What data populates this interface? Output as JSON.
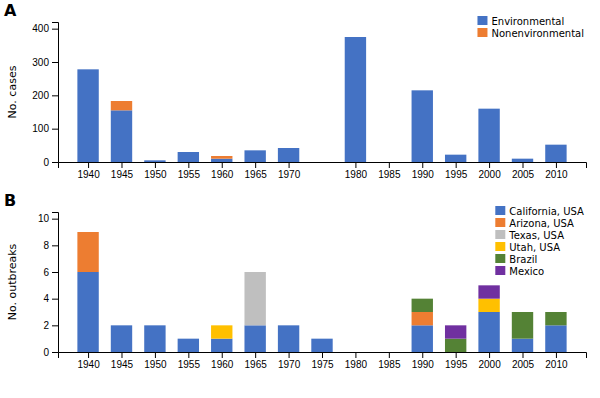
{
  "chart_data": [
    {
      "type": "bar",
      "title": "A",
      "stacked": true,
      "grid": false,
      "legend": "upper right",
      "y_label": "No. cases",
      "x": [
        1940,
        1945,
        1950,
        1955,
        1960,
        1965,
        1970,
        1980,
        1985,
        1990,
        1995,
        2000,
        2005,
        2010
      ],
      "series": [
        {
          "name": "Environmental",
          "color": "#4472C4",
          "values": [
            278,
            155,
            5,
            30,
            10,
            35,
            42,
            375,
            0,
            215,
            22,
            160,
            10,
            52
          ]
        },
        {
          "name": "Nonenvironmental",
          "color": "#ED7D31",
          "values": [
            0,
            28,
            0,
            0,
            8,
            0,
            0,
            0,
            0,
            0,
            0,
            0,
            0,
            0
          ]
        }
      ],
      "xlim": [
        1935.5,
        2014.5
      ],
      "xticks": [
        1940,
        1945,
        1950,
        1955,
        1960,
        1965,
        1970,
        1980,
        1985,
        1990,
        1995,
        2000,
        2005,
        2010
      ],
      "ylim": [
        0,
        420
      ],
      "yticks": [
        0,
        100,
        200,
        300,
        400
      ]
    },
    {
      "type": "bar",
      "title": "B",
      "stacked": true,
      "grid": false,
      "legend": "upper right",
      "y_label": "No. outbreaks",
      "x": [
        1940,
        1945,
        1950,
        1955,
        1960,
        1965,
        1970,
        1975,
        1980,
        1985,
        1990,
        1995,
        2000,
        2005,
        2010
      ],
      "series": [
        {
          "name": "California, USA",
          "color": "#4472C4",
          "values": [
            6,
            2,
            2,
            1,
            1,
            2,
            2,
            1,
            0,
            0,
            2,
            0,
            3,
            1,
            2
          ]
        },
        {
          "name": "Arizona, USA",
          "color": "#ED7D31",
          "values": [
            3,
            0,
            0,
            0,
            0,
            0,
            0,
            0,
            0,
            0,
            1,
            0,
            0,
            0,
            0
          ]
        },
        {
          "name": "Texas, USA",
          "color": "#BFBFBF",
          "values": [
            0,
            0,
            0,
            0,
            0,
            4,
            0,
            0,
            0,
            0,
            0,
            0,
            0,
            0,
            0
          ]
        },
        {
          "name": "Utah, USA",
          "color": "#FFC000",
          "values": [
            0,
            0,
            0,
            0,
            1,
            0,
            0,
            0,
            0,
            0,
            0,
            0,
            1,
            0,
            0
          ]
        },
        {
          "name": "Brazil",
          "color": "#548235",
          "values": [
            0,
            0,
            0,
            0,
            0,
            0,
            0,
            0,
            0,
            0,
            1,
            1,
            0,
            2,
            1
          ]
        },
        {
          "name": "Mexico",
          "color": "#7030A0",
          "values": [
            0,
            0,
            0,
            0,
            0,
            0,
            0,
            0,
            0,
            0,
            0,
            1,
            1,
            0,
            0
          ]
        }
      ],
      "xlim": [
        1935.5,
        2014.5
      ],
      "xticks": [
        1940,
        1945,
        1950,
        1955,
        1960,
        1965,
        1970,
        1975,
        1980,
        1985,
        1990,
        1995,
        2000,
        2005,
        2010
      ],
      "ylim": [
        0,
        10.5
      ],
      "yticks": [
        0,
        2,
        4,
        6,
        8,
        10
      ]
    }
  ]
}
